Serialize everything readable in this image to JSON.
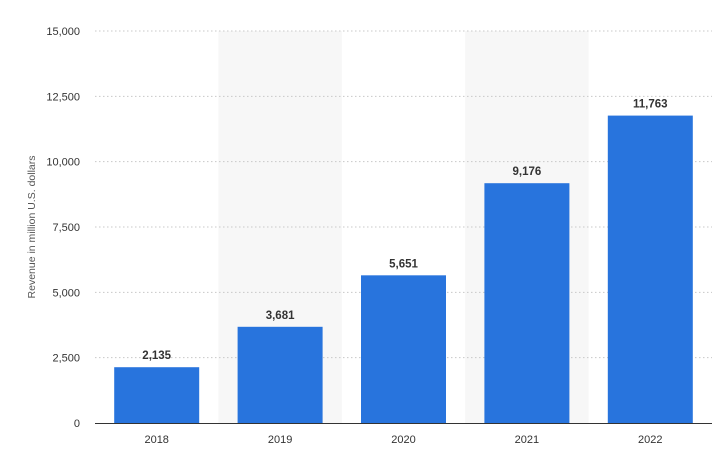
{
  "chart_data": {
    "type": "bar",
    "categories": [
      "2018",
      "2019",
      "2020",
      "2021",
      "2022"
    ],
    "values": [
      2135,
      3681,
      5651,
      9176,
      11763
    ],
    "value_labels": [
      "2,135",
      "3,681",
      "5,651",
      "9,176",
      "11,763"
    ],
    "title": "",
    "xlabel": "",
    "ylabel": "Revenue in million U.S. dollars",
    "ylim": [
      0,
      15000
    ],
    "yticks": [
      0,
      2500,
      5000,
      7500,
      10000,
      12500,
      15000
    ],
    "ytick_labels": [
      "0",
      "2,500",
      "5,000",
      "7,500",
      "10,000",
      "12,500",
      "15,000"
    ],
    "grid": true,
    "grid_style": "dotted",
    "legend": false,
    "alternating_column_shading": true,
    "colors": {
      "bar": "#2874dd",
      "column_band": "#f7f7f7",
      "grid": "#c8c8c8",
      "axis": "#333333"
    }
  }
}
